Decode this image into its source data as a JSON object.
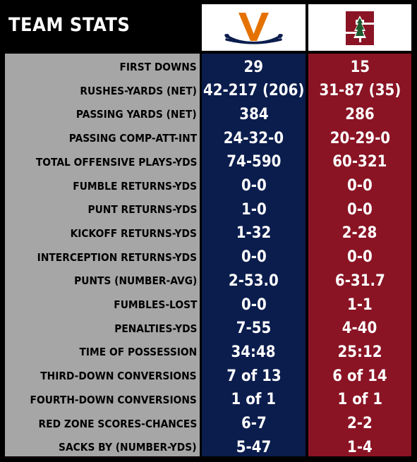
{
  "title": "TEAM STATS",
  "teams": [
    {
      "name": "Virginia",
      "logo": "virginia-v-sabres-logo",
      "color": "#0b1d4d",
      "accent": "#e57200"
    },
    {
      "name": "Stanford",
      "logo": "stanford-s-tree-logo",
      "color": "#8a1424"
    }
  ],
  "stats": [
    {
      "label": "FIRST DOWNS",
      "uva": "29",
      "stan": "15"
    },
    {
      "label": "RUSHES-YARDS (NET)",
      "uva": "42-217 (206)",
      "stan": "31-87 (35)"
    },
    {
      "label": "PASSING YARDS (NET)",
      "uva": "384",
      "stan": "286"
    },
    {
      "label": "PASSING COMP-ATT-INT",
      "uva": "24-32-0",
      "stan": "20-29-0"
    },
    {
      "label": "TOTAL OFFENSIVE PLAYS-YDS",
      "uva": "74-590",
      "stan": "60-321"
    },
    {
      "label": "FUMBLE RETURNS-YDS",
      "uva": "0-0",
      "stan": "0-0"
    },
    {
      "label": "PUNT RETURNS-YDS",
      "uva": "1-0",
      "stan": "0-0"
    },
    {
      "label": "KICKOFF RETURNS-YDS",
      "uva": "1-32",
      "stan": "2-28"
    },
    {
      "label": "INTERCEPTION RETURNS-YDS",
      "uva": "0-0",
      "stan": "0-0"
    },
    {
      "label": "PUNTS (NUMBER-AVG)",
      "uva": "2-53.0",
      "stan": "6-31.7"
    },
    {
      "label": "FUMBLES-LOST",
      "uva": "0-0",
      "stan": "1-1"
    },
    {
      "label": "PENALTIES-YDS",
      "uva": "7-55",
      "stan": "4-40"
    },
    {
      "label": "TIME OF POSSESSION",
      "uva": "34:48",
      "stan": "25:12"
    },
    {
      "label": "THIRD-DOWN CONVERSIONS",
      "uva": "7 of 13",
      "stan": "6 of 14"
    },
    {
      "label": "FOURTH-DOWN CONVERSIONS",
      "uva": "1 of 1",
      "stan": "1 of 1"
    },
    {
      "label": "RED ZONE SCORES-CHANCES",
      "uva": "6-7",
      "stan": "2-2"
    },
    {
      "label": "SACKS BY (NUMBER-YDS)",
      "uva": "5-47",
      "stan": "1-4"
    }
  ]
}
